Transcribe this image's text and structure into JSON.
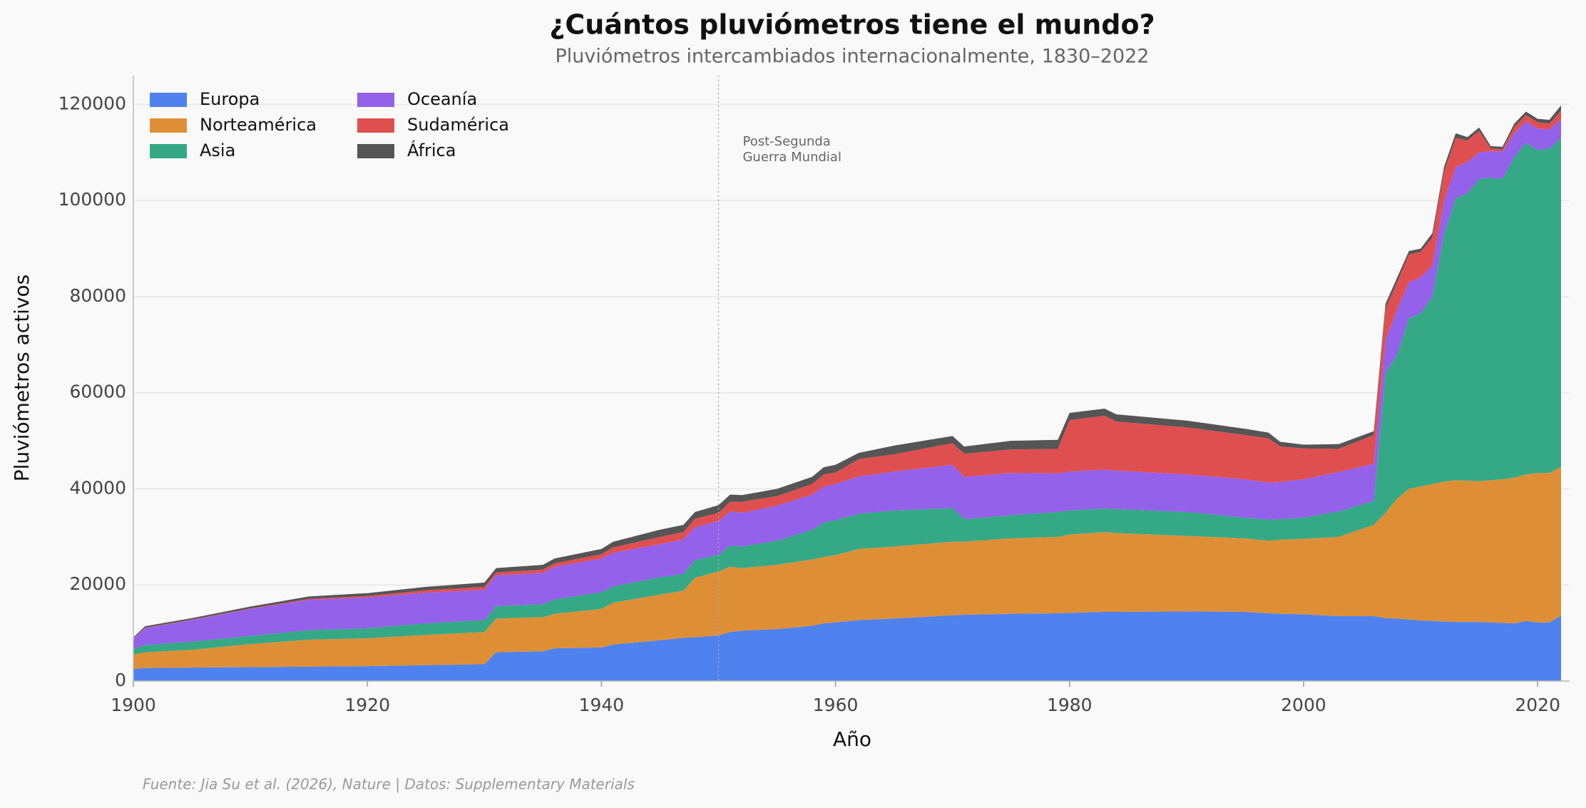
{
  "chart_data": {
    "type": "stacked_area",
    "title": "¿Cuántos pluviómetros tiene el mundo?",
    "subtitle": "Pluviómetros intercambiados internacionalmente, 1830–2022",
    "x_label": "Año",
    "y_label": "Pluviómetros activos",
    "source": "Fuente: Jia Su et al. (2026), Nature | Datos: Supplementary Materials",
    "annotation": {
      "lines": [
        "Post-Segunda",
        "Guerra Mundial"
      ],
      "x": 1950
    },
    "legend": "upper left",
    "grid": true,
    "xlim": [
      1900,
      2022
    ],
    "ylim": [
      0,
      126000
    ],
    "xticks": [
      1900,
      1920,
      1940,
      1960,
      1980,
      2000,
      2020
    ],
    "yticks": [
      0,
      20000,
      40000,
      60000,
      80000,
      100000,
      120000
    ],
    "x": [
      1900,
      1901,
      1905,
      1910,
      1915,
      1920,
      1925,
      1930,
      1931,
      1935,
      1936,
      1940,
      1941,
      1945,
      1947,
      1948,
      1950,
      1951,
      1952,
      1955,
      1958,
      1959,
      1960,
      1962,
      1965,
      1970,
      1971,
      1975,
      1979,
      1980,
      1983,
      1984,
      1990,
      1995,
      1997,
      1998,
      2000,
      2003,
      2006,
      2007,
      2008,
      2009,
      2010,
      2011,
      2012,
      2013,
      2014,
      2015,
      2016,
      2017,
      2018,
      2019,
      2020,
      2021,
      2022
    ],
    "series": [
      {
        "name": "Europa",
        "color": "#4f81ef",
        "values": [
          2500,
          2700,
          2800,
          2900,
          3000,
          3100,
          3300,
          3500,
          6000,
          6200,
          6800,
          7000,
          7600,
          8500,
          9000,
          9100,
          9500,
          10200,
          10500,
          10800,
          11500,
          12000,
          12200,
          12700,
          13000,
          13700,
          13800,
          14000,
          14100,
          14200,
          14400,
          14400,
          14500,
          14400,
          14100,
          14000,
          13900,
          13500,
          13500,
          13100,
          13000,
          12800,
          12600,
          12500,
          12400,
          12300,
          12300,
          12300,
          12200,
          12100,
          12000,
          12500,
          12200,
          12200,
          13600
        ]
      },
      {
        "name": "Norteamérica",
        "color": "#de8f36",
        "values": [
          3000,
          3300,
          3700,
          4800,
          5600,
          5800,
          6300,
          6700,
          7000,
          7100,
          7200,
          8000,
          8700,
          9500,
          9800,
          12400,
          13300,
          13600,
          13000,
          13400,
          13800,
          13800,
          14000,
          14800,
          15000,
          15300,
          15200,
          15700,
          15900,
          16300,
          16600,
          16400,
          15700,
          15300,
          15100,
          15400,
          15700,
          16500,
          19000,
          21900,
          25000,
          27200,
          27900,
          28500,
          29100,
          29500,
          29400,
          29300,
          29600,
          29900,
          30300,
          30500,
          31100,
          31100,
          31000
        ]
      },
      {
        "name": "Asia",
        "color": "#35a986",
        "values": [
          1200,
          1500,
          1700,
          1700,
          2000,
          2100,
          2400,
          2500,
          2600,
          2700,
          3000,
          3500,
          3400,
          3600,
          3500,
          3700,
          3500,
          4400,
          4500,
          5000,
          6200,
          7200,
          7300,
          7300,
          7500,
          7000,
          4700,
          4800,
          5200,
          5000,
          4900,
          5000,
          5000,
          4300,
          4400,
          4300,
          4400,
          5300,
          5000,
          29000,
          30000,
          35500,
          36000,
          39000,
          51500,
          58700,
          59800,
          62900,
          62900,
          62500,
          66700,
          69000,
          67200,
          67500,
          68400
        ]
      },
      {
        "name": "Oceanía",
        "color": "#9461ea",
        "values": [
          2100,
          3500,
          4500,
          5600,
          6300,
          6400,
          6400,
          6300,
          6400,
          6500,
          6800,
          7000,
          7000,
          6900,
          7200,
          6800,
          7000,
          7100,
          7000,
          7300,
          7300,
          7500,
          7500,
          7800,
          8100,
          9000,
          8800,
          8800,
          8000,
          8100,
          8100,
          8000,
          7800,
          8000,
          7700,
          7700,
          8000,
          8200,
          7700,
          7000,
          9500,
          7500,
          7500,
          6500,
          7000,
          6500,
          6500,
          5500,
          5600,
          5700,
          5000,
          4500,
          4500,
          4000,
          4000
        ]
      },
      {
        "name": "Sudamérica",
        "color": "#e04f4f",
        "values": [
          100,
          100,
          100,
          100,
          200,
          300,
          500,
          600,
          600,
          700,
          700,
          900,
          1100,
          1500,
          1500,
          1800,
          1700,
          2000,
          2300,
          2000,
          2200,
          2500,
          2400,
          3600,
          3600,
          4500,
          4800,
          4900,
          5100,
          10700,
          11200,
          10200,
          9800,
          9200,
          9200,
          7400,
          6400,
          4800,
          6000,
          6500,
          5500,
          5800,
          5300,
          5800,
          6000,
          6000,
          4500,
          4500,
          500,
          500,
          1300,
          1300,
          1300,
          1200,
          1700
        ]
      },
      {
        "name": "África",
        "color": "#555555",
        "values": [
          200,
          300,
          300,
          400,
          500,
          600,
          700,
          900,
          900,
          1000,
          1000,
          1100,
          1200,
          1500,
          1500,
          1400,
          1600,
          1500,
          1400,
          1500,
          1500,
          1500,
          1600,
          1300,
          1800,
          1500,
          1500,
          1800,
          1900,
          1500,
          1500,
          1500,
          1400,
          1300,
          1200,
          1000,
          800,
          1000,
          800,
          1000,
          1000,
          700,
          700,
          900,
          1000,
          1000,
          700,
          700,
          500,
          500,
          700,
          700,
          700,
          800,
          1100
        ]
      }
    ]
  }
}
